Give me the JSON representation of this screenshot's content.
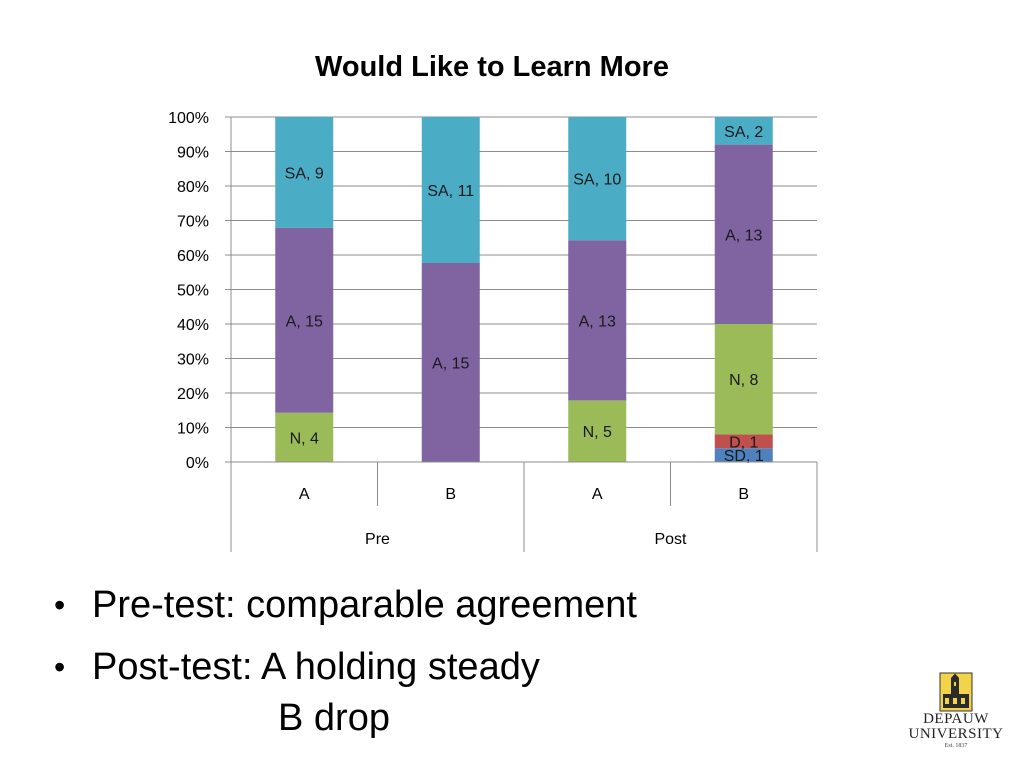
{
  "chart_data": {
    "type": "bar",
    "stacked": true,
    "percent_stacked": true,
    "title": "Would Like to Learn More",
    "y_ticks": [
      "0%",
      "10%",
      "20%",
      "30%",
      "40%",
      "50%",
      "60%",
      "70%",
      "80%",
      "90%",
      "100%"
    ],
    "ylim": [
      0,
      100
    ],
    "grid": true,
    "groups": [
      {
        "label": "Pre",
        "categories": [
          "A",
          "B"
        ]
      },
      {
        "label": "Post",
        "categories": [
          "A",
          "B"
        ]
      }
    ],
    "bars": [
      {
        "group": "Pre",
        "category": "A",
        "segments": [
          {
            "code": "N",
            "count": 4,
            "label": "N, 4"
          },
          {
            "code": "A",
            "count": 15,
            "label": "A, 15"
          },
          {
            "code": "SA",
            "count": 9,
            "label": "SA, 9"
          }
        ]
      },
      {
        "group": "Pre",
        "category": "B",
        "segments": [
          {
            "code": "A",
            "count": 15,
            "label": "A, 15"
          },
          {
            "code": "SA",
            "count": 11,
            "label": "SA, 11"
          }
        ]
      },
      {
        "group": "Post",
        "category": "A",
        "segments": [
          {
            "code": "N",
            "count": 5,
            "label": "N, 5"
          },
          {
            "code": "A",
            "count": 13,
            "label": "A, 13"
          },
          {
            "code": "SA",
            "count": 10,
            "label": "SA, 10"
          }
        ]
      },
      {
        "group": "Post",
        "category": "B",
        "segments": [
          {
            "code": "SD",
            "count": 1,
            "label": "SD, 1"
          },
          {
            "code": "D",
            "count": 1,
            "label": "D, 1"
          },
          {
            "code": "N",
            "count": 8,
            "label": "N, 8"
          },
          {
            "code": "A",
            "count": 13,
            "label": "A, 13"
          },
          {
            "code": "SA",
            "count": 2,
            "label": "SA, 2"
          }
        ]
      }
    ],
    "colors": {
      "SD": "#4f81bd",
      "D": "#c0504d",
      "N": "#9bbb59",
      "A": "#8064a2",
      "SA": "#4bacc6"
    }
  },
  "slide": {
    "bullets": [
      "Pre-test: comparable agreement",
      "Post-test: A holding steady"
    ],
    "continuation": "B drop",
    "bullet_symbol": "•"
  },
  "logo": {
    "line1": "DEPAUW",
    "line2": "UNIVERSITY",
    "line3": "Est. 1837",
    "icon": "depauw-tower-emblem-icon"
  }
}
